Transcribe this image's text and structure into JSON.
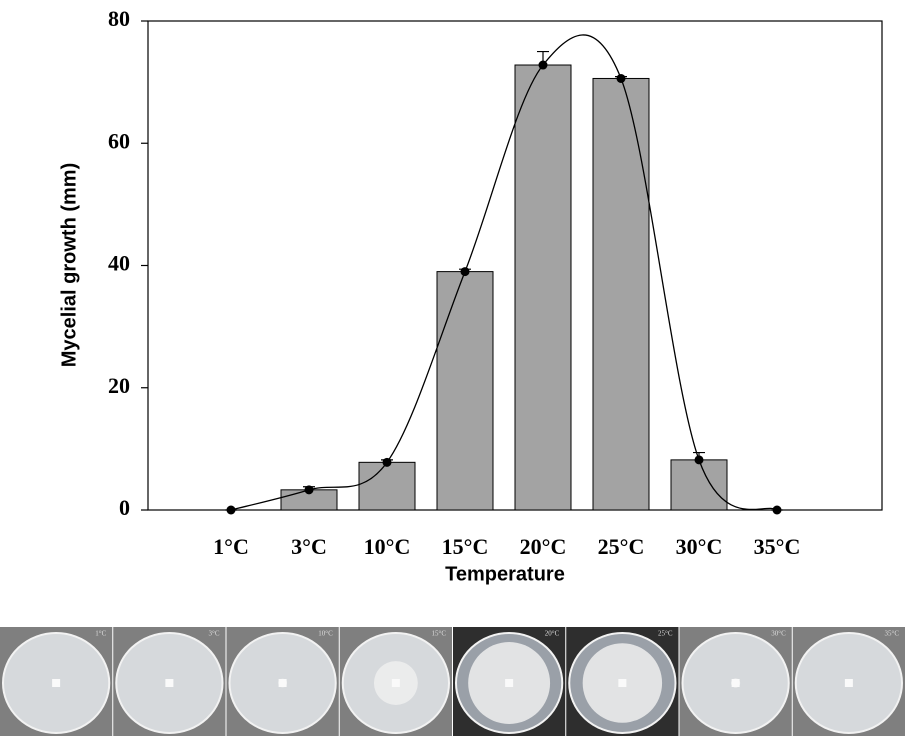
{
  "chart_data": {
    "type": "bar",
    "x_label": "Temperature",
    "y_label": "Mycelial growth (mm)",
    "categories": [
      "1°C",
      "3°C",
      "10°C",
      "15°C",
      "20°C",
      "25°C",
      "30°C",
      "35°C"
    ],
    "values": [
      0,
      3.3,
      7.8,
      39,
      72.8,
      70.6,
      8.2,
      0
    ],
    "errors": [
      0,
      0.5,
      0.4,
      0.4,
      2.2,
      0.3,
      1.2,
      0
    ],
    "color": "#a3a3a3",
    "line_color": "#000000",
    "ylim": [
      0,
      80
    ],
    "yticks": [
      0,
      20,
      40,
      60,
      80
    ]
  }
}
